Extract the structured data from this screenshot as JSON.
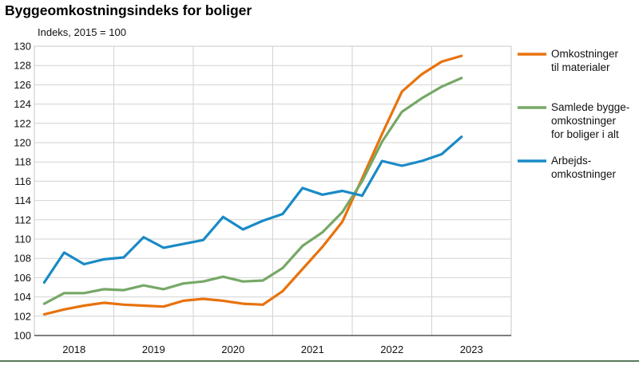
{
  "title": "Byggeomkostningsindeks for boliger",
  "chart_data": {
    "type": "line",
    "title": "Byggeomkostningsindeks for boliger",
    "ylabel": "Indeks, 2015 = 100",
    "xlabel": "",
    "ylim": [
      100,
      130
    ],
    "yticks": [
      100,
      102,
      104,
      106,
      108,
      110,
      112,
      114,
      116,
      118,
      120,
      122,
      124,
      126,
      128,
      130
    ],
    "x_tick_labels": [
      "2018",
      "2019",
      "2020",
      "2021",
      "2022",
      "2023"
    ],
    "x": [
      "2018K1",
      "2018K2",
      "2018K3",
      "2018K4",
      "2019K1",
      "2019K2",
      "2019K3",
      "2019K4",
      "2020K1",
      "2020K2",
      "2020K3",
      "2020K4",
      "2021K1",
      "2021K2",
      "2021K3",
      "2021K4",
      "2022K1",
      "2022K2",
      "2022K3",
      "2022K4",
      "2023K1",
      "2023K2"
    ],
    "grid": true,
    "legend_position": "right",
    "series": [
      {
        "name": "Omkostninger til materialer",
        "legend_lines": [
          "Omkostninger",
          "til materialer"
        ],
        "color": "#e8720c",
        "values": [
          102.2,
          102.7,
          103.1,
          103.4,
          103.2,
          103.1,
          103.0,
          103.6,
          103.8,
          103.6,
          103.3,
          103.2,
          104.6,
          106.9,
          109.2,
          111.8,
          116.3,
          120.9,
          125.3,
          127.1,
          128.4,
          129.0
        ]
      },
      {
        "name": "Samlede bygge-omkostninger for boliger i alt",
        "legend_lines": [
          "Samlede bygge-",
          "omkostninger",
          "for boliger i alt"
        ],
        "color": "#76a867",
        "values": [
          103.3,
          104.4,
          104.4,
          104.8,
          104.7,
          105.2,
          104.8,
          105.4,
          105.6,
          106.1,
          105.6,
          105.7,
          107.0,
          109.3,
          110.7,
          112.8,
          116.0,
          120.1,
          123.2,
          124.6,
          125.8,
          126.7
        ]
      },
      {
        "name": "Arbejds-omkostninger",
        "legend_lines": [
          "Arbejds-",
          "omkostninger"
        ],
        "color": "#1a8ac6",
        "values": [
          105.5,
          108.6,
          107.4,
          107.9,
          108.1,
          110.2,
          109.1,
          109.5,
          109.9,
          112.3,
          111.0,
          111.9,
          112.6,
          115.3,
          114.6,
          115.0,
          114.5,
          118.1,
          117.6,
          118.1,
          118.8,
          120.6
        ]
      }
    ]
  }
}
